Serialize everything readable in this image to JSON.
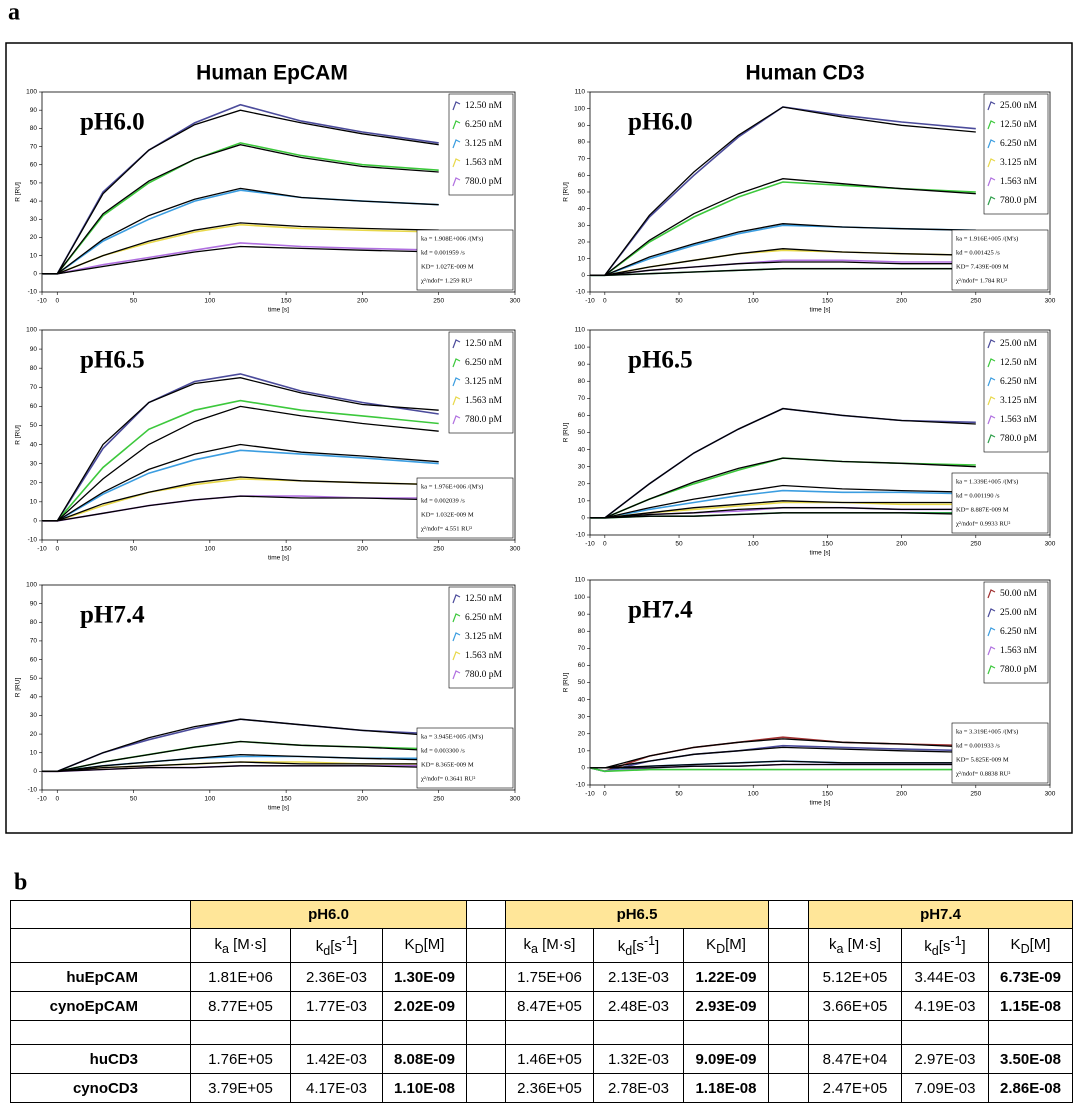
{
  "figure_labels": [
    "a",
    "b"
  ],
  "column_titles": [
    "Human EpCAM",
    "Human CD3"
  ],
  "chart_data": [
    {
      "type": "line",
      "title": "pH6.0",
      "xlabel": "time [s]",
      "ylabel": "R [RU]",
      "x": [
        -10,
        0,
        30,
        60,
        90,
        120,
        160,
        200,
        250
      ],
      "xlim": [
        -10,
        300
      ],
      "xticks": [
        -10,
        0,
        50,
        100,
        150,
        200,
        250,
        300
      ],
      "ylim": [
        -10,
        100
      ],
      "yticks": [
        -10,
        0,
        10,
        20,
        30,
        40,
        50,
        60,
        70,
        80,
        90,
        100
      ],
      "series": [
        {
          "name": "12.50 nM",
          "color": "#4b4b9b",
          "values": [
            0,
            0,
            45,
            68,
            83,
            93,
            84,
            78,
            72
          ]
        },
        {
          "name": "6.250 nM",
          "color": "#3cc83c",
          "values": [
            0,
            0,
            32,
            50,
            63,
            72,
            65,
            60,
            57
          ]
        },
        {
          "name": "3.125 nM",
          "color": "#3b9de0",
          "values": [
            0,
            0,
            18,
            30,
            40,
            46,
            42,
            40,
            38
          ]
        },
        {
          "name": "1.563 nM",
          "color": "#e8d84a",
          "values": [
            0,
            0,
            10,
            17,
            23,
            27,
            25,
            24,
            23
          ]
        },
        {
          "name": "780.0 pM",
          "color": "#b070e0",
          "values": [
            0,
            0,
            5,
            9,
            13,
            17,
            15,
            14,
            13
          ]
        }
      ],
      "fit_color": "#000000",
      "fits": [
        [
          0,
          0,
          44,
          68,
          82,
          90,
          83,
          77,
          71
        ],
        [
          0,
          0,
          33,
          51,
          63,
          71,
          64,
          59,
          56
        ],
        [
          0,
          0,
          19,
          32,
          41,
          47,
          42,
          40,
          38
        ],
        [
          0,
          0,
          10,
          18,
          24,
          28,
          26,
          25,
          24
        ],
        [
          0,
          0,
          4,
          8,
          12,
          15,
          14,
          13,
          12
        ]
      ],
      "stats": [
        "ka = 1.908E+006 /(M's)",
        "kd = 0.001959 /s",
        "KD= 1.027E-009 M",
        "χ²/ndof= 1.259 RU²"
      ]
    },
    {
      "type": "line",
      "title": "pH6.0",
      "xlabel": "time [s]",
      "ylabel": "R [RU]",
      "x": [
        -10,
        0,
        30,
        60,
        90,
        120,
        160,
        200,
        250
      ],
      "xlim": [
        -10,
        300
      ],
      "xticks": [
        -10,
        0,
        50,
        100,
        150,
        200,
        250,
        300
      ],
      "ylim": [
        -10,
        110
      ],
      "yticks": [
        -10,
        0,
        10,
        20,
        30,
        40,
        50,
        60,
        70,
        80,
        90,
        100,
        110
      ],
      "series": [
        {
          "name": "25.00 nM",
          "color": "#4b4b9b",
          "values": [
            0,
            0,
            35,
            60,
            83,
            101,
            96,
            92,
            88
          ]
        },
        {
          "name": "12.50 nM",
          "color": "#3cc83c",
          "values": [
            0,
            0,
            20,
            35,
            47,
            56,
            54,
            52,
            50
          ]
        },
        {
          "name": "6.250 nM",
          "color": "#3b9de0",
          "values": [
            0,
            0,
            10,
            18,
            25,
            30,
            29,
            28,
            27
          ]
        },
        {
          "name": "3.125 nM",
          "color": "#e8d84a",
          "values": [
            0,
            0,
            5,
            9,
            13,
            15,
            14,
            13,
            12
          ]
        },
        {
          "name": "1.563 nM",
          "color": "#b070e0",
          "values": [
            0,
            0,
            3,
            5,
            7,
            9,
            9,
            8,
            8
          ]
        },
        {
          "name": "780.0 pM",
          "color": "#2e9e4a",
          "values": [
            0,
            0,
            1,
            2,
            3,
            4,
            4,
            4,
            4
          ]
        }
      ],
      "fit_color": "#000000",
      "fits": [
        [
          0,
          0,
          36,
          62,
          84,
          101,
          95,
          90,
          86
        ],
        [
          0,
          0,
          21,
          37,
          49,
          58,
          55,
          52,
          49
        ],
        [
          0,
          0,
          11,
          19,
          26,
          31,
          29,
          28,
          27
        ],
        [
          0,
          0,
          5,
          9,
          13,
          16,
          14,
          13,
          12
        ],
        [
          0,
          0,
          3,
          5,
          7,
          8,
          8,
          7,
          7
        ],
        [
          0,
          0,
          1,
          2,
          3,
          4,
          4,
          4,
          4
        ]
      ],
      "stats": [
        "ka = 1.916E+005 /(M's)",
        "kd = 0.001425 /s",
        "KD= 7.439E-009 M",
        "χ²/ndof= 1.784 RU²"
      ]
    },
    {
      "type": "line",
      "title": "pH6.5",
      "xlabel": "time [s]",
      "ylabel": "R [RU]",
      "x": [
        -10,
        0,
        30,
        60,
        90,
        120,
        160,
        200,
        250
      ],
      "xlim": [
        -10,
        300
      ],
      "xticks": [
        -10,
        0,
        50,
        100,
        150,
        200,
        250,
        300
      ],
      "ylim": [
        -10,
        100
      ],
      "yticks": [
        -10,
        0,
        10,
        20,
        30,
        40,
        50,
        60,
        70,
        80,
        90,
        100
      ],
      "series": [
        {
          "name": "12.50 nM",
          "color": "#4b4b9b",
          "values": [
            0,
            0,
            38,
            62,
            73,
            77,
            68,
            62,
            56
          ]
        },
        {
          "name": "6.250 nM",
          "color": "#3cc83c",
          "values": [
            0,
            0,
            28,
            48,
            58,
            63,
            58,
            55,
            51
          ]
        },
        {
          "name": "3.125 nM",
          "color": "#3b9de0",
          "values": [
            0,
            0,
            14,
            25,
            32,
            37,
            35,
            33,
            30
          ]
        },
        {
          "name": "1.563 nM",
          "color": "#e8d84a",
          "values": [
            0,
            0,
            8,
            15,
            19,
            22,
            21,
            20,
            19
          ]
        },
        {
          "name": "780.0 pM",
          "color": "#b070e0",
          "values": [
            0,
            0,
            4,
            8,
            11,
            13,
            13,
            12,
            12
          ]
        }
      ],
      "fit_color": "#000000",
      "fits": [
        [
          0,
          0,
          40,
          62,
          72,
          75,
          67,
          61,
          58
        ],
        [
          0,
          0,
          22,
          40,
          52,
          60,
          55,
          51,
          47
        ],
        [
          0,
          0,
          15,
          27,
          35,
          40,
          36,
          34,
          31
        ],
        [
          0,
          0,
          9,
          15,
          20,
          23,
          21,
          20,
          19
        ],
        [
          0,
          0,
          4,
          8,
          11,
          13,
          12,
          12,
          11
        ]
      ],
      "stats": [
        "ka = 1.976E+006 /(M's)",
        "kd = 0.002039 /s",
        "KD= 1.032E-009 M",
        "χ²/ndof= 4.551 RU²"
      ]
    },
    {
      "type": "line",
      "title": "pH6.5",
      "xlabel": "time [s]",
      "ylabel": "R [RU]",
      "x": [
        -10,
        0,
        30,
        60,
        90,
        120,
        160,
        200,
        250
      ],
      "xlim": [
        -10,
        300
      ],
      "xticks": [
        -10,
        0,
        50,
        100,
        150,
        200,
        250,
        300
      ],
      "ylim": [
        -10,
        110
      ],
      "yticks": [
        -10,
        0,
        10,
        20,
        30,
        40,
        50,
        60,
        70,
        80,
        90,
        100,
        110
      ],
      "series": [
        {
          "name": "25.00 nM",
          "color": "#4b4b9b",
          "values": [
            0,
            0,
            20,
            38,
            52,
            64,
            60,
            57,
            56
          ]
        },
        {
          "name": "12.50 nM",
          "color": "#3cc83c",
          "values": [
            0,
            0,
            11,
            20,
            28,
            35,
            33,
            32,
            31
          ]
        },
        {
          "name": "6.250 nM",
          "color": "#3b9de0",
          "values": [
            0,
            0,
            5,
            9,
            13,
            16,
            15,
            15,
            14
          ]
        },
        {
          "name": "3.125 nM",
          "color": "#e8d84a",
          "values": [
            0,
            0,
            3,
            5,
            7,
            9,
            9,
            8,
            8
          ]
        },
        {
          "name": "1.563 nM",
          "color": "#b070e0",
          "values": [
            0,
            0,
            2,
            3,
            4,
            6,
            6,
            5,
            5
          ]
        },
        {
          "name": "780.0 pM",
          "color": "#2e9e4a",
          "values": [
            0,
            0,
            1,
            1,
            2,
            3,
            3,
            3,
            3
          ]
        }
      ],
      "fit_color": "#000000",
      "fits": [
        [
          0,
          0,
          20,
          38,
          52,
          64,
          60,
          57,
          55
        ],
        [
          0,
          0,
          11,
          21,
          29,
          35,
          33,
          32,
          30
        ],
        [
          0,
          0,
          6,
          11,
          15,
          19,
          17,
          16,
          15
        ],
        [
          0,
          0,
          3,
          6,
          8,
          10,
          9,
          9,
          9
        ],
        [
          0,
          0,
          2,
          3,
          5,
          6,
          6,
          5,
          5
        ],
        [
          0,
          0,
          1,
          1,
          2,
          3,
          3,
          3,
          2
        ]
      ],
      "stats": [
        "ka = 1.339E+005 /(M's)",
        "kd = 0.001190 /s",
        "KD= 8.887E-009 M",
        "χ²/ndof= 0.9933 RU²"
      ]
    },
    {
      "type": "line",
      "title": "pH7.4",
      "xlabel": "time [s]",
      "ylabel": "R [RU]",
      "x": [
        -10,
        0,
        30,
        60,
        90,
        120,
        160,
        200,
        250
      ],
      "xlim": [
        -10,
        300
      ],
      "xticks": [
        -10,
        0,
        50,
        100,
        150,
        200,
        250,
        300
      ],
      "ylim": [
        -10,
        100
      ],
      "yticks": [
        -10,
        0,
        10,
        20,
        30,
        40,
        50,
        60,
        70,
        80,
        90,
        100
      ],
      "series": [
        {
          "name": "12.50 nM",
          "color": "#4b4b9b",
          "values": [
            0,
            0,
            10,
            17,
            23,
            28,
            25,
            22,
            20
          ]
        },
        {
          "name": "6.250 nM",
          "color": "#3cc83c",
          "values": [
            0,
            0,
            5,
            9,
            13,
            16,
            14,
            13,
            12
          ]
        },
        {
          "name": "3.125 nM",
          "color": "#3b9de0",
          "values": [
            0,
            0,
            3,
            5,
            7,
            8,
            8,
            7,
            7
          ]
        },
        {
          "name": "1.563 nM",
          "color": "#e8d84a",
          "values": [
            0,
            0,
            2,
            3,
            4,
            5,
            5,
            4,
            4
          ]
        },
        {
          "name": "780.0 pM",
          "color": "#b070e0",
          "values": [
            0,
            0,
            1,
            2,
            2,
            3,
            3,
            3,
            3
          ]
        }
      ],
      "fit_color": "#000000",
      "fits": [
        [
          0,
          0,
          10,
          18,
          24,
          28,
          25,
          22,
          19
        ],
        [
          0,
          0,
          5,
          9,
          13,
          16,
          14,
          13,
          11
        ],
        [
          0,
          0,
          3,
          5,
          7,
          9,
          8,
          7,
          6
        ],
        [
          0,
          0,
          2,
          3,
          4,
          5,
          4,
          4,
          4
        ],
        [
          0,
          0,
          1,
          2,
          2,
          3,
          3,
          3,
          2
        ]
      ],
      "stats": [
        "ka = 3.945E+005 /(M's)",
        "kd = 0.003300 /s",
        "KD= 8.365E-009 M",
        "χ²/ndof= 0.3641 RU²"
      ]
    },
    {
      "type": "line",
      "title": "pH7.4",
      "xlabel": "time [s]",
      "ylabel": "R [RU]",
      "x": [
        -10,
        0,
        30,
        60,
        90,
        120,
        160,
        200,
        250
      ],
      "xlim": [
        -10,
        300
      ],
      "xticks": [
        -10,
        0,
        50,
        100,
        150,
        200,
        250,
        300
      ],
      "ylim": [
        -10,
        110
      ],
      "yticks": [
        -10,
        0,
        10,
        20,
        30,
        40,
        50,
        60,
        70,
        80,
        90,
        100,
        110
      ],
      "series": [
        {
          "name": "50.00 nM",
          "color": "#a03030",
          "values": [
            0,
            -2,
            7,
            12,
            15,
            18,
            15,
            14,
            13
          ]
        },
        {
          "name": "25.00 nM",
          "color": "#4b4b9b",
          "values": [
            0,
            -2,
            4,
            8,
            10,
            13,
            12,
            11,
            10
          ]
        },
        {
          "name": "6.250 nM",
          "color": "#3b9de0",
          "values": [
            0,
            -2,
            1,
            2,
            3,
            4,
            3,
            3,
            3
          ]
        },
        {
          "name": "1.563 nM",
          "color": "#b070e0",
          "values": [
            0,
            -2,
            0,
            1,
            1,
            2,
            2,
            2,
            2
          ]
        },
        {
          "name": "780.0 pM",
          "color": "#3cc83c",
          "values": [
            0,
            -2,
            -1,
            -1,
            -1,
            -1,
            -1,
            -1,
            -1
          ]
        }
      ],
      "fit_color": "#000000",
      "fits": [
        [
          0,
          0,
          7,
          12,
          15,
          17,
          15,
          14,
          12
        ],
        [
          0,
          0,
          4,
          8,
          10,
          12,
          11,
          10,
          9
        ],
        [
          0,
          0,
          1,
          2,
          3,
          4,
          3,
          3,
          3
        ],
        [
          0,
          0,
          0,
          1,
          1,
          2,
          2,
          2,
          2
        ]
      ],
      "stats": [
        "ka = 3.319E+005 /(M's)",
        "kd = 0.001933 /s",
        "KD= 5.825E-009 M",
        "χ²/ndof= 0.8838 RU²"
      ]
    }
  ],
  "table": {
    "groups": [
      "pH6.0",
      "pH6.5",
      "pH7.4"
    ],
    "subheaders": [
      [
        {
          "text": "k"
        },
        {
          "sub": "a"
        },
        {
          "text": " [M·s]"
        }
      ],
      [
        {
          "text": "k"
        },
        {
          "sub": "d"
        },
        {
          "text": "[s"
        },
        {
          "sup": "-1"
        },
        {
          "text": "]"
        }
      ],
      [
        {
          "text": "K"
        },
        {
          "sub": "D"
        },
        {
          "text": "[M]"
        }
      ]
    ],
    "rows": [
      [
        "huEpCAM",
        "1.81E+06",
        "2.36E-03",
        "1.30E-09",
        "1.75E+06",
        "2.13E-03",
        "1.22E-09",
        "5.12E+05",
        "3.44E-03",
        "6.73E-09"
      ],
      [
        "cynoEpCAM",
        "8.77E+05",
        "1.77E-03",
        "2.02E-09",
        "8.47E+05",
        "2.48E-03",
        "2.93E-09",
        "3.66E+05",
        "4.19E-03",
        "1.15E-08"
      ],
      [
        "huCD3",
        "1.76E+05",
        "1.42E-03",
        "8.08E-09",
        "1.46E+05",
        "1.32E-03",
        "9.09E-09",
        "8.47E+04",
        "2.97E-03",
        "3.50E-08"
      ],
      [
        "cynoCD3",
        "3.79E+05",
        "4.17E-03",
        "1.10E-08",
        "2.36E+05",
        "2.78E-03",
        "1.18E-08",
        "2.47E+05",
        "7.09E-03",
        "2.86E-08"
      ]
    ]
  }
}
